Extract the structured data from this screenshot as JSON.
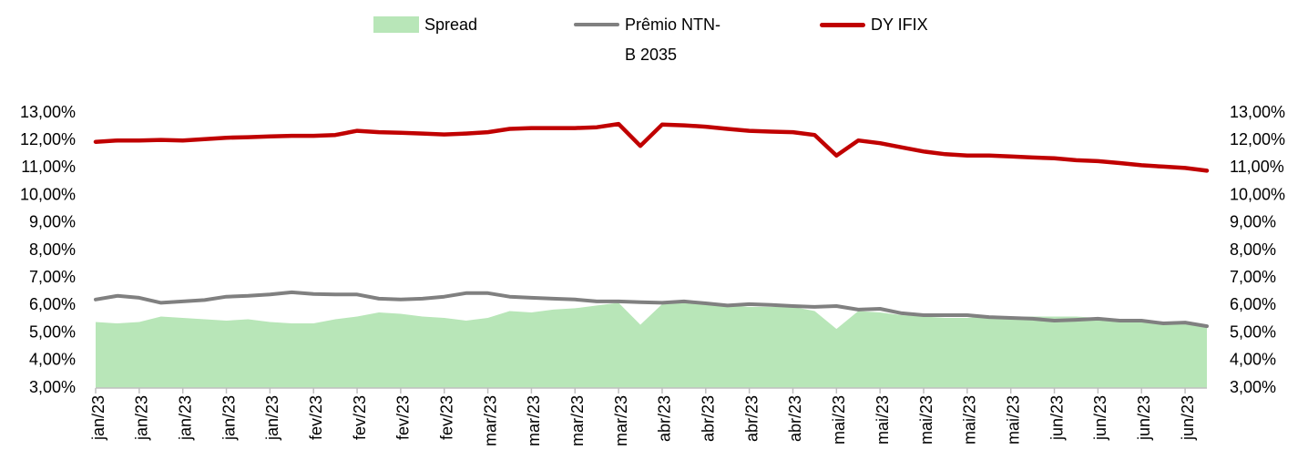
{
  "chart_data": {
    "type": "line",
    "categories": [
      "jan/23",
      null,
      "jan/23",
      null,
      "jan/23",
      null,
      "jan/23",
      null,
      "jan/23",
      null,
      "fev/23",
      null,
      "fev/23",
      null,
      "fev/23",
      null,
      "fev/23",
      null,
      "mar/23",
      null,
      "mar/23",
      null,
      "mar/23",
      null,
      "mar/23",
      null,
      "abr/23",
      null,
      "abr/23",
      null,
      "abr/23",
      null,
      "abr/23",
      null,
      "mai/23",
      null,
      "mai/23",
      null,
      "mai/23",
      null,
      "mai/23",
      null,
      "mai/23",
      null,
      "jun/23",
      null,
      "jun/23",
      null,
      "jun/23",
      null,
      "jun/23",
      null
    ],
    "series": [
      {
        "name": "Spread",
        "type": "area",
        "color": "#b8e6b8",
        "values": [
          5.4,
          5.35,
          5.4,
          5.6,
          5.55,
          5.5,
          5.45,
          5.5,
          5.4,
          5.35,
          5.35,
          5.5,
          5.6,
          5.75,
          5.7,
          5.6,
          5.55,
          5.45,
          5.55,
          5.8,
          5.75,
          5.85,
          5.9,
          6.0,
          6.1,
          5.3,
          6.05,
          6.1,
          6.05,
          6.0,
          5.95,
          5.95,
          5.95,
          5.8,
          5.15,
          5.8,
          5.75,
          5.65,
          5.6,
          5.55,
          5.55,
          5.6,
          5.6,
          5.6,
          5.6,
          5.6,
          5.55,
          5.5,
          5.45,
          5.4,
          5.35,
          5.3
        ]
      },
      {
        "name": "Prêmio NTN-B 2035",
        "type": "line",
        "color": "#808080",
        "values": [
          6.22,
          6.35,
          6.28,
          6.1,
          6.15,
          6.2,
          6.32,
          6.35,
          6.4,
          6.48,
          6.42,
          6.4,
          6.4,
          6.25,
          6.22,
          6.25,
          6.32,
          6.45,
          6.45,
          6.32,
          6.28,
          6.25,
          6.22,
          6.15,
          6.15,
          6.12,
          6.1,
          6.15,
          6.08,
          6.0,
          6.05,
          6.02,
          5.98,
          5.95,
          5.98,
          5.85,
          5.88,
          5.72,
          5.65,
          5.65,
          5.65,
          5.58,
          5.55,
          5.52,
          5.45,
          5.48,
          5.52,
          5.45,
          5.45,
          5.35,
          5.38,
          5.25
        ]
      },
      {
        "name": "DY IFIX",
        "type": "line",
        "axis": "y2",
        "color": "#c00000",
        "values": [
          11.95,
          12.0,
          12.0,
          12.02,
          12.0,
          12.05,
          12.1,
          12.12,
          12.15,
          12.17,
          12.17,
          12.2,
          12.35,
          12.3,
          12.28,
          12.25,
          12.22,
          12.25,
          12.3,
          12.42,
          12.45,
          12.45,
          12.45,
          12.48,
          12.6,
          11.8,
          12.58,
          12.55,
          12.5,
          12.42,
          12.35,
          12.32,
          12.3,
          12.2,
          11.45,
          12.0,
          11.9,
          11.75,
          11.6,
          11.5,
          11.45,
          11.45,
          11.42,
          11.38,
          11.35,
          11.28,
          11.25,
          11.18,
          11.1,
          11.05,
          11.0,
          10.9
        ]
      }
    ],
    "ylim": [
      3,
      13
    ],
    "yticks": [
      {
        "value": 3,
        "label": "3,00%"
      },
      {
        "value": 4,
        "label": "4,00%"
      },
      {
        "value": 5,
        "label": "5,00%"
      },
      {
        "value": 6,
        "label": "6,00%"
      },
      {
        "value": 7,
        "label": "7,00%"
      },
      {
        "value": 8,
        "label": "8,00%"
      },
      {
        "value": 9,
        "label": "9,00%"
      },
      {
        "value": 10,
        "label": "10,00%"
      },
      {
        "value": 11,
        "label": "11,00%"
      },
      {
        "value": 12,
        "label": "12,00%"
      },
      {
        "value": 13,
        "label": "13,00%"
      }
    ],
    "y2lim": [
      3,
      13
    ],
    "y2ticks": [
      {
        "value": 3,
        "label": "3,00%"
      },
      {
        "value": 4,
        "label": "4,00%"
      },
      {
        "value": 5,
        "label": "5,00%"
      },
      {
        "value": 6,
        "label": "6,00%"
      },
      {
        "value": 7,
        "label": "7,00%"
      },
      {
        "value": 8,
        "label": "8,00%"
      },
      {
        "value": 9,
        "label": "9,00%"
      },
      {
        "value": 10,
        "label": "10,00%"
      },
      {
        "value": 11,
        "label": "11,00%"
      },
      {
        "value": 12,
        "label": "12,00%"
      },
      {
        "value": 13,
        "label": "13,00%"
      }
    ],
    "grid": false,
    "legend": "top"
  }
}
